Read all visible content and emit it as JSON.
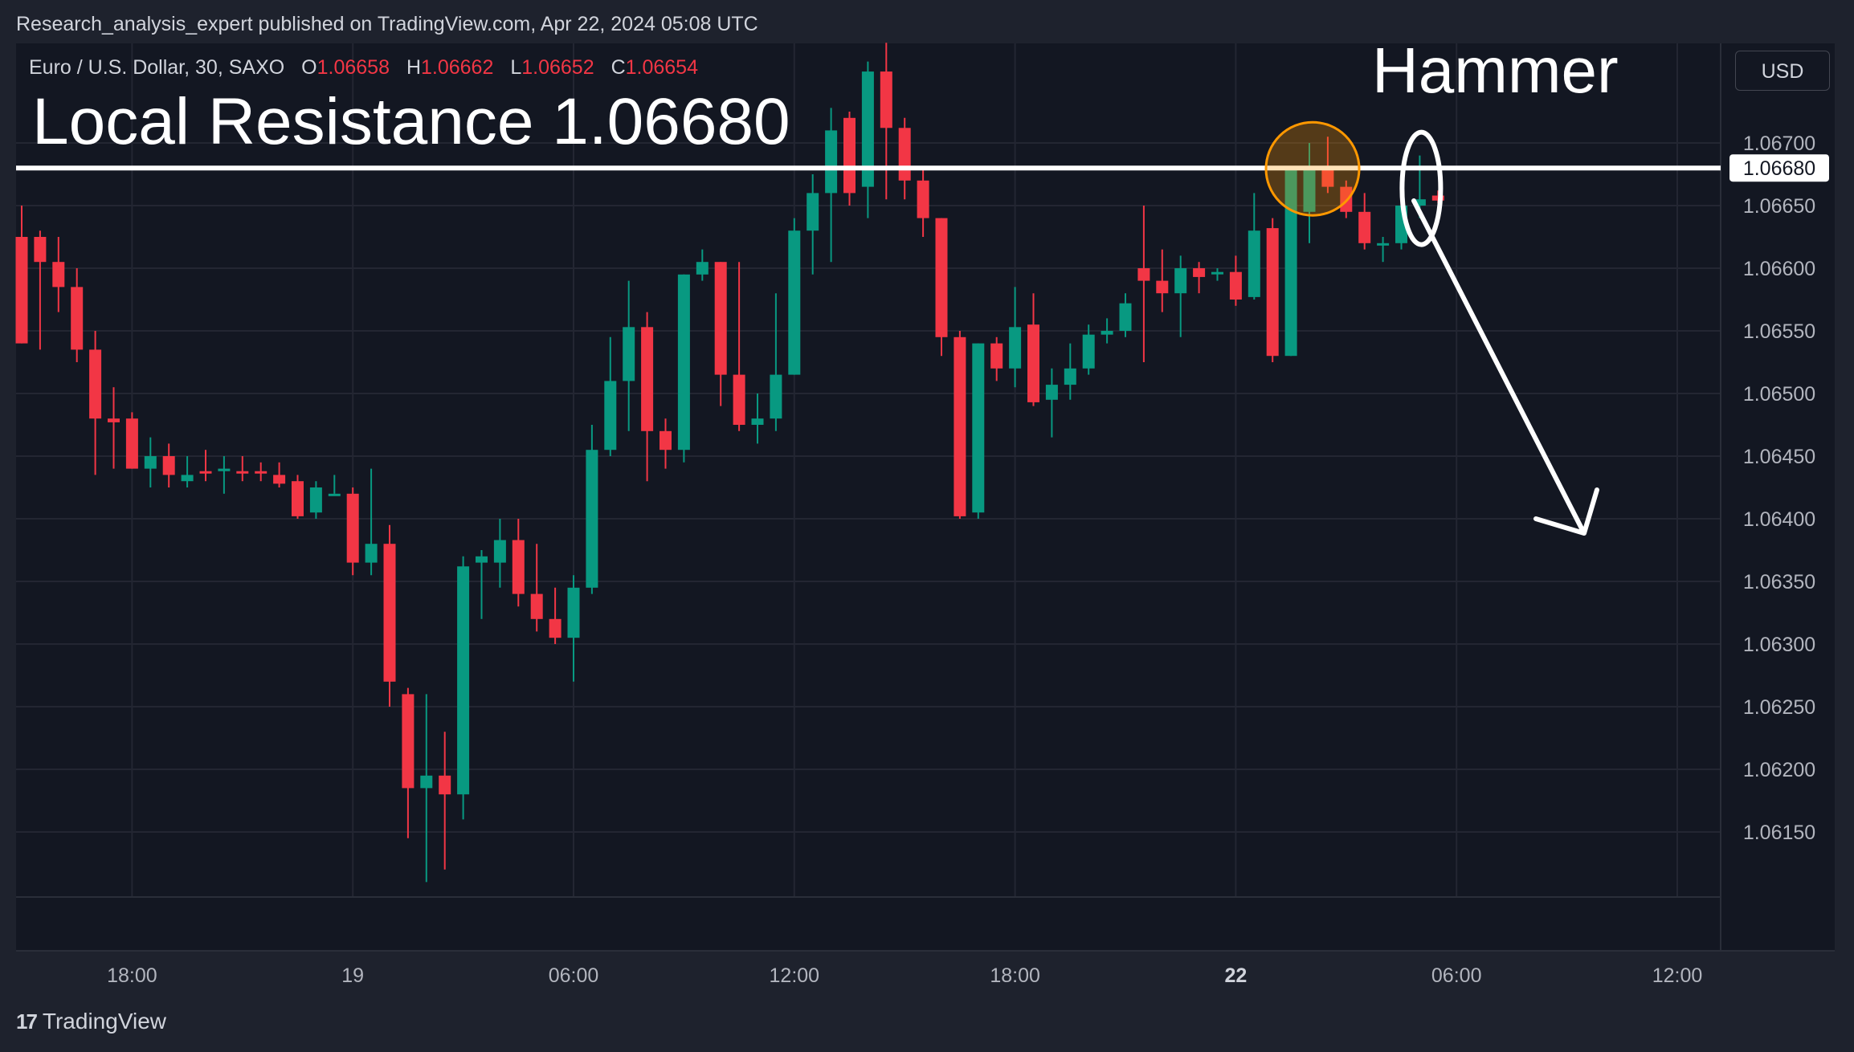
{
  "header": {
    "published": "Research_analysis_expert published on TradingView.com, Apr 22, 2024 05:08 UTC",
    "symbol": "Euro / U.S. Dollar, 30, SAXO",
    "ohlc": [
      {
        "label": "O",
        "value": "1.06658"
      },
      {
        "label": "H",
        "value": "1.06662"
      },
      {
        "label": "L",
        "value": "1.06652"
      },
      {
        "label": "C",
        "value": "1.06654"
      }
    ],
    "currency": "USD"
  },
  "annotations": {
    "resistance_text": "Local Resistance 1.06680",
    "hammer_text": "Hammer",
    "resistance_level": 1.0668,
    "resistance_tag": "1.06680"
  },
  "footer": {
    "brand": "TradingView",
    "brand_logo": "tradingview-logo-icon"
  },
  "colors": {
    "background": "#1e222d",
    "pane": "#131722",
    "up": "#089981",
    "down": "#f23645",
    "grid": "#232632",
    "annotation": "#ffffff",
    "highlight_circle": "#ff9800"
  },
  "chart_data": {
    "type": "candlestick",
    "timeframe": "30",
    "ylim": [
      1.061,
      1.0675
    ],
    "y_ticks": [
      "1.06700",
      "1.06650",
      "1.06600",
      "1.06550",
      "1.06500",
      "1.06450",
      "1.06400",
      "1.06350",
      "1.06300",
      "1.06250",
      "1.06200",
      "1.06150"
    ],
    "x_ticks": [
      {
        "label": "18:00",
        "bar": 6,
        "bold": false
      },
      {
        "label": "19",
        "bar": 18,
        "bold": false
      },
      {
        "label": "06:00",
        "bar": 30,
        "bold": false
      },
      {
        "label": "12:00",
        "bar": 42,
        "bold": false
      },
      {
        "label": "18:00",
        "bar": 54,
        "bold": false
      },
      {
        "label": "22",
        "bar": 66,
        "bold": true
      },
      {
        "label": "06:00",
        "bar": 78,
        "bold": false
      },
      {
        "label": "12:00",
        "bar": 90,
        "bold": false
      }
    ],
    "candles": [
      [
        1.06625,
        1.0665,
        1.0654,
        1.0654
      ],
      [
        1.06625,
        1.0663,
        1.06535,
        1.06605
      ],
      [
        1.06605,
        1.06625,
        1.06565,
        1.06585
      ],
      [
        1.06585,
        1.066,
        1.06525,
        1.06535
      ],
      [
        1.06535,
        1.0655,
        1.06435,
        1.0648
      ],
      [
        1.0648,
        1.06505,
        1.0644,
        1.06477
      ],
      [
        1.0648,
        1.06485,
        1.0644,
        1.0644
      ],
      [
        1.0644,
        1.06465,
        1.06425,
        1.0645
      ],
      [
        1.0645,
        1.0646,
        1.06425,
        1.06435
      ],
      [
        1.0643,
        1.0645,
        1.06425,
        1.06435
      ],
      [
        1.06438,
        1.06455,
        1.0643,
        1.06437
      ],
      [
        1.06438,
        1.0645,
        1.0642,
        1.0644
      ],
      [
        1.06438,
        1.0645,
        1.0643,
        1.06437
      ],
      [
        1.06438,
        1.06445,
        1.0643,
        1.06437
      ],
      [
        1.06435,
        1.06445,
        1.06425,
        1.06428
      ],
      [
        1.0643,
        1.06435,
        1.064,
        1.06402
      ],
      [
        1.06405,
        1.0643,
        1.064,
        1.06425
      ],
      [
        1.0642,
        1.06435,
        1.0642,
        1.0642
      ],
      [
        1.0642,
        1.06425,
        1.06355,
        1.06365
      ],
      [
        1.06365,
        1.0644,
        1.06355,
        1.0638
      ],
      [
        1.0638,
        1.06395,
        1.0625,
        1.0627
      ],
      [
        1.0626,
        1.06265,
        1.06145,
        1.06185
      ],
      [
        1.06185,
        1.0626,
        1.0611,
        1.06195
      ],
      [
        1.06195,
        1.0623,
        1.0612,
        1.0618
      ],
      [
        1.0618,
        1.0637,
        1.0616,
        1.06362
      ],
      [
        1.06365,
        1.06375,
        1.0632,
        1.0637
      ],
      [
        1.06365,
        1.064,
        1.06345,
        1.06383
      ],
      [
        1.06383,
        1.064,
        1.0633,
        1.0634
      ],
      [
        1.0634,
        1.0638,
        1.0631,
        1.0632
      ],
      [
        1.0632,
        1.06345,
        1.063,
        1.06305
      ],
      [
        1.06305,
        1.06355,
        1.0627,
        1.06345
      ],
      [
        1.06345,
        1.06475,
        1.0634,
        1.06455
      ],
      [
        1.06455,
        1.06545,
        1.0645,
        1.0651
      ],
      [
        1.0651,
        1.0659,
        1.0647,
        1.06553
      ],
      [
        1.06553,
        1.06565,
        1.0643,
        1.0647
      ],
      [
        1.0647,
        1.0648,
        1.0644,
        1.06455
      ],
      [
        1.06455,
        1.06595,
        1.06445,
        1.06595
      ],
      [
        1.06595,
        1.06615,
        1.0659,
        1.06605
      ],
      [
        1.06605,
        1.06605,
        1.0649,
        1.06515
      ],
      [
        1.06515,
        1.06605,
        1.0647,
        1.06475
      ],
      [
        1.06475,
        1.065,
        1.0646,
        1.0648
      ],
      [
        1.0648,
        1.0658,
        1.0647,
        1.06515
      ],
      [
        1.06515,
        1.0664,
        1.06515,
        1.0663
      ],
      [
        1.0663,
        1.06675,
        1.06595,
        1.0666
      ],
      [
        1.0666,
        1.06728,
        1.06605,
        1.0671
      ],
      [
        1.0672,
        1.06725,
        1.0665,
        1.0666
      ],
      [
        1.06665,
        1.06765,
        1.0664,
        1.06757
      ],
      [
        1.06757,
        1.0678,
        1.06655,
        1.06712
      ],
      [
        1.06712,
        1.0672,
        1.06655,
        1.0667
      ],
      [
        1.0667,
        1.0668,
        1.06625,
        1.0664
      ],
      [
        1.0664,
        1.0664,
        1.0653,
        1.06545
      ],
      [
        1.06545,
        1.0655,
        1.064,
        1.06402
      ],
      [
        1.06405,
        1.0654,
        1.064,
        1.0654
      ],
      [
        1.0654,
        1.06545,
        1.0651,
        1.0652
      ],
      [
        1.0652,
        1.06585,
        1.06505,
        1.06553
      ],
      [
        1.06555,
        1.0658,
        1.0649,
        1.06493
      ],
      [
        1.06495,
        1.0652,
        1.06465,
        1.06507
      ],
      [
        1.06507,
        1.0654,
        1.06495,
        1.0652
      ],
      [
        1.0652,
        1.06555,
        1.06515,
        1.06547
      ],
      [
        1.06547,
        1.0656,
        1.0654,
        1.0655
      ],
      [
        1.0655,
        1.0658,
        1.06545,
        1.06572
      ],
      [
        1.066,
        1.0665,
        1.06525,
        1.0659
      ],
      [
        1.0659,
        1.06615,
        1.06565,
        1.0658
      ],
      [
        1.0658,
        1.0661,
        1.06545,
        1.066
      ],
      [
        1.066,
        1.06605,
        1.0658,
        1.06593
      ],
      [
        1.06597,
        1.066,
        1.0659,
        1.06597
      ],
      [
        1.06597,
        1.0661,
        1.0657,
        1.06575
      ],
      [
        1.06577,
        1.0666,
        1.06575,
        1.0663
      ],
      [
        1.06632,
        1.0664,
        1.06525,
        1.0653
      ],
      [
        1.0653,
        1.0668,
        1.0653,
        1.0668
      ],
      [
        1.06645,
        1.067,
        1.0662,
        1.0668
      ],
      [
        1.0668,
        1.06705,
        1.0666,
        1.06665
      ],
      [
        1.06665,
        1.0667,
        1.0664,
        1.06645
      ],
      [
        1.06645,
        1.0666,
        1.06615,
        1.0662
      ],
      [
        1.0662,
        1.06625,
        1.06605,
        1.0662
      ],
      [
        1.0662,
        1.0665,
        1.06615,
        1.0665
      ],
      [
        1.0665,
        1.0669,
        1.0664,
        1.06655
      ],
      [
        1.06658,
        1.06662,
        1.06652,
        1.06654
      ]
    ]
  }
}
